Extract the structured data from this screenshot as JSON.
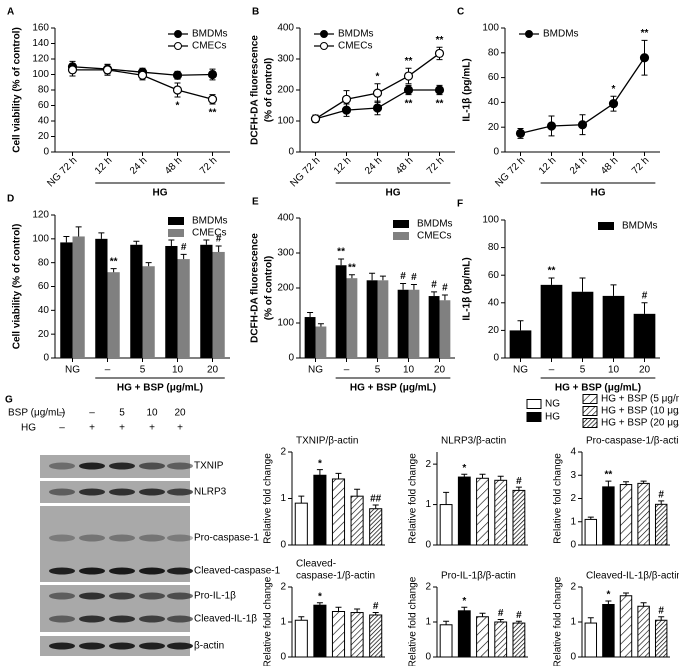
{
  "chart_data": [
    {
      "panel": "A",
      "type": "line",
      "ylabel": "Cell viability (% of control)",
      "categories": [
        "NG 72 h",
        "12 h",
        "24 h",
        "48 h",
        "72 h"
      ],
      "xlabel": "HG",
      "ylim": [
        0,
        160
      ],
      "yticks": [
        0,
        20,
        40,
        60,
        80,
        100,
        120,
        140,
        160
      ],
      "legend": "upper right",
      "series": [
        {
          "name": "BMDMs",
          "color": "#000000",
          "fill": "#000000",
          "values": [
            110,
            107,
            103,
            99,
            100
          ],
          "errors": [
            7,
            6,
            5,
            5,
            7
          ],
          "annotations": [
            null,
            null,
            null,
            null,
            null
          ]
        },
        {
          "name": "CMECs",
          "color": "#000000",
          "fill": "#ffffff",
          "values": [
            106,
            106,
            99,
            80,
            68
          ],
          "errors": [
            8,
            7,
            6,
            9,
            6
          ],
          "annotations": [
            null,
            null,
            null,
            "*",
            "**"
          ]
        }
      ]
    },
    {
      "panel": "B",
      "type": "line",
      "ylabel": [
        "DCFH-DA fluorescence",
        "(% of control)"
      ],
      "categories": [
        "NG 72 h",
        "12 h",
        "24 h",
        "48 h",
        "72 h"
      ],
      "xlabel": "HG",
      "ylim": [
        0,
        400
      ],
      "yticks": [
        0,
        100,
        200,
        300,
        400
      ],
      "legend": "upper left",
      "series": [
        {
          "name": "BMDMs",
          "color": "#000000",
          "fill": "#000000",
          "values": [
            107,
            135,
            142,
            200,
            200
          ],
          "errors": [
            12,
            20,
            22,
            15,
            15
          ],
          "annotations": [
            null,
            null,
            null,
            "**",
            "**"
          ]
        },
        {
          "name": "CMECs",
          "color": "#000000",
          "fill": "#ffffff",
          "values": [
            107,
            170,
            190,
            245,
            318
          ],
          "errors": [
            12,
            28,
            30,
            25,
            20
          ],
          "annotations": [
            null,
            null,
            "*",
            "**",
            "**"
          ]
        }
      ]
    },
    {
      "panel": "C",
      "type": "line",
      "ylabel": "IL-1β (pg/mL)",
      "categories": [
        "NG 72 h",
        "12 h",
        "24 h",
        "48 h",
        "72 h"
      ],
      "xlabel": "HG",
      "ylim": [
        0,
        100
      ],
      "yticks": [
        0,
        20,
        40,
        60,
        80,
        100
      ],
      "legend": "upper left",
      "series": [
        {
          "name": "BMDMs",
          "color": "#000000",
          "fill": "#000000",
          "values": [
            15,
            21,
            22,
            39,
            76
          ],
          "errors": [
            4,
            8,
            8,
            6,
            14
          ],
          "annotations": [
            null,
            null,
            null,
            "*",
            "**"
          ]
        }
      ]
    },
    {
      "panel": "D",
      "type": "bar",
      "ylabel": "Cell viability (% of control)",
      "categories": [
        "NG",
        "–",
        "5",
        "10",
        "20"
      ],
      "xlabel": "HG + BSP (μg/mL)",
      "ylim": [
        0,
        120
      ],
      "yticks": [
        0,
        20,
        40,
        60,
        80,
        100,
        120
      ],
      "legend": "upper right",
      "series": [
        {
          "name": "BMDMs",
          "color": "#000000",
          "values": [
            97,
            100,
            95,
            94,
            95
          ],
          "errors": [
            5,
            5,
            3,
            5,
            4
          ],
          "annotations": [
            null,
            null,
            null,
            null,
            null
          ]
        },
        {
          "name": "CMECs",
          "color": "#808080",
          "values": [
            102,
            72,
            77,
            83,
            89
          ],
          "errors": [
            8,
            3,
            3,
            4,
            5
          ],
          "annotations": [
            null,
            "**",
            null,
            "#",
            "#"
          ]
        }
      ]
    },
    {
      "panel": "E",
      "type": "bar",
      "ylabel": [
        "DCFH-DA fluorescence",
        "(% of control)"
      ],
      "categories": [
        "NG",
        "–",
        "5",
        "10",
        "20"
      ],
      "xlabel": "HG + BSP (μg/mL)",
      "ylim": [
        0,
        400
      ],
      "yticks": [
        0,
        100,
        200,
        300,
        400
      ],
      "legend": "upper right",
      "series": [
        {
          "name": "BMDMs",
          "color": "#000000",
          "values": [
            117,
            265,
            222,
            195,
            177
          ],
          "errors": [
            13,
            18,
            20,
            18,
            12
          ],
          "annotations": [
            null,
            "**",
            null,
            "#",
            "#"
          ]
        },
        {
          "name": "CMECs",
          "color": "#808080",
          "values": [
            90,
            228,
            222,
            195,
            165
          ],
          "errors": [
            8,
            10,
            12,
            15,
            15
          ],
          "annotations": [
            null,
            "**",
            null,
            "#",
            "#"
          ]
        }
      ]
    },
    {
      "panel": "F",
      "type": "bar",
      "ylabel": "IL-1β (pg/mL)",
      "categories": [
        "NG",
        "–",
        "5",
        "10",
        "20"
      ],
      "xlabel": "HG + BSP (μg/mL)",
      "ylim": [
        0,
        100
      ],
      "yticks": [
        0,
        20,
        40,
        60,
        80,
        100
      ],
      "legend": "upper right",
      "series": [
        {
          "name": "BMDMs",
          "color": "#000000",
          "values": [
            20,
            53,
            48,
            45,
            32
          ],
          "errors": [
            7,
            5,
            10,
            8,
            8
          ],
          "annotations": [
            null,
            "**",
            null,
            null,
            "#"
          ]
        }
      ]
    },
    {
      "type": "bar",
      "title": "TXNIP/β-actin",
      "ylabel": "Relative fold change",
      "ylim": [
        0,
        2
      ],
      "yticks": [
        0,
        1,
        2
      ],
      "values": [
        0.9,
        1.5,
        1.42,
        1.05,
        0.78
      ],
      "errors": [
        0.15,
        0.12,
        0.12,
        0.15,
        0.08
      ],
      "annotations": [
        null,
        "*",
        null,
        null,
        "##"
      ]
    },
    {
      "type": "bar",
      "title": "NLRP3/β-actin",
      "ylabel": "Relative fold change",
      "ylim": [
        0,
        2.3
      ],
      "yticks": [
        0,
        1,
        2
      ],
      "values": [
        1.0,
        1.68,
        1.65,
        1.6,
        1.35
      ],
      "errors": [
        0.3,
        0.07,
        0.1,
        0.1,
        0.08
      ],
      "annotations": [
        null,
        "*",
        null,
        null,
        "#"
      ]
    },
    {
      "type": "bar",
      "title": "Pro-caspase-1/β-actin",
      "ylabel": "Relative fold change",
      "ylim": [
        0,
        4
      ],
      "yticks": [
        0,
        1,
        2,
        3,
        4
      ],
      "values": [
        1.1,
        2.5,
        2.6,
        2.65,
        1.75
      ],
      "errors": [
        0.1,
        0.25,
        0.12,
        0.1,
        0.15
      ],
      "annotations": [
        null,
        "**",
        null,
        null,
        "#"
      ]
    },
    {
      "type": "bar",
      "title": [
        "Cleaved-",
        "caspase-1/β-actin"
      ],
      "ylabel": "Relative fold change",
      "ylim": [
        0,
        2
      ],
      "yticks": [
        0,
        1,
        2
      ],
      "values": [
        1.05,
        1.48,
        1.3,
        1.27,
        1.2
      ],
      "errors": [
        0.1,
        0.07,
        0.12,
        0.1,
        0.07
      ],
      "annotations": [
        null,
        "*",
        null,
        null,
        "#"
      ]
    },
    {
      "type": "bar",
      "title": "Pro-IL-1β/β-actin",
      "ylabel": "Relative fold change",
      "ylim": [
        0,
        2
      ],
      "yticks": [
        0,
        1,
        2
      ],
      "values": [
        0.92,
        1.32,
        1.15,
        1.0,
        0.97
      ],
      "errors": [
        0.1,
        0.1,
        0.1,
        0.07,
        0.05
      ],
      "annotations": [
        null,
        "*",
        null,
        "#",
        "#"
      ]
    },
    {
      "type": "bar",
      "title": "Cleaved-IL-1β/β-actin",
      "ylabel": "Relative fold change",
      "ylim": [
        0,
        2
      ],
      "yticks": [
        0,
        1,
        2
      ],
      "values": [
        0.97,
        1.5,
        1.75,
        1.45,
        1.05
      ],
      "errors": [
        0.15,
        0.1,
        0.08,
        0.1,
        0.1
      ],
      "annotations": [
        null,
        "*",
        null,
        null,
        "#"
      ]
    }
  ],
  "figure_g": {
    "panel": "G",
    "blot": {
      "rows": [
        {
          "label": "BSP (μg/mL)",
          "cells": [
            "–",
            "–",
            "5",
            "10",
            "20"
          ]
        },
        {
          "label": "HG",
          "cells": [
            "–",
            "+",
            "+",
            "+",
            "+"
          ]
        }
      ],
      "bands": [
        "TXNIP",
        "NLRP3",
        "Pro-caspase-1",
        "Cleaved-caspase-1",
        "Pro-IL-1β",
        "Cleaved-IL-1β",
        "β-actin"
      ]
    },
    "legend": [
      {
        "name": "NG",
        "fill": "#ffffff"
      },
      {
        "name": "HG",
        "fill": "#000000"
      },
      {
        "name": "HG + BSP (5 μg/mL)",
        "hatch": "light"
      },
      {
        "name": "HG + BSP (10 μg/mL)",
        "hatch": "medium"
      },
      {
        "name": "HG + BSP (20 μg/mL)",
        "hatch": "dense"
      }
    ]
  }
}
